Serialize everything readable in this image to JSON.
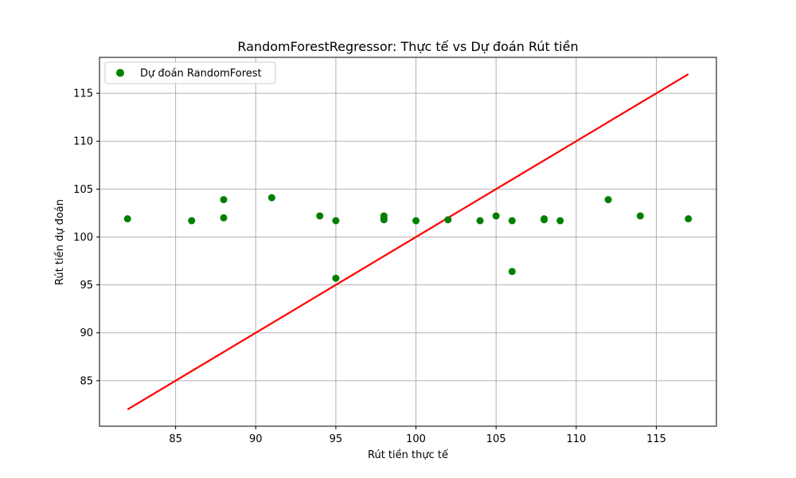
{
  "chart_data": {
    "type": "scatter",
    "title": "RandomForestRegressor: Thực tế vs Dự đoán Rút tiền",
    "xlabel": "Rút tiền thực tế",
    "ylabel": "Rút tiền dự đoán",
    "xlim": [
      80.25,
      118.75
    ],
    "ylim": [
      80.25,
      118.75
    ],
    "xticks": [
      85,
      90,
      95,
      100,
      105,
      110,
      115
    ],
    "yticks": [
      85,
      90,
      95,
      100,
      105,
      110,
      115
    ],
    "grid": true,
    "legend_position": "top-left",
    "series": [
      {
        "name": "Dự đoán RandomForest",
        "color": "#008000",
        "x": [
          82,
          86,
          88,
          88,
          91,
          94,
          95,
          95,
          98,
          98,
          98,
          100,
          102,
          104,
          105,
          106,
          106,
          108,
          108,
          109,
          112,
          114,
          117
        ],
        "y": [
          101.9,
          101.7,
          103.9,
          102.0,
          104.1,
          102.2,
          101.7,
          95.7,
          102.2,
          102.0,
          101.8,
          101.7,
          101.8,
          101.7,
          102.2,
          101.7,
          96.4,
          101.9,
          101.8,
          101.7,
          103.9,
          102.2,
          101.9
        ]
      }
    ],
    "reference_line": {
      "color": "#ff0000",
      "x": [
        82,
        117
      ],
      "y": [
        82,
        117
      ]
    }
  }
}
